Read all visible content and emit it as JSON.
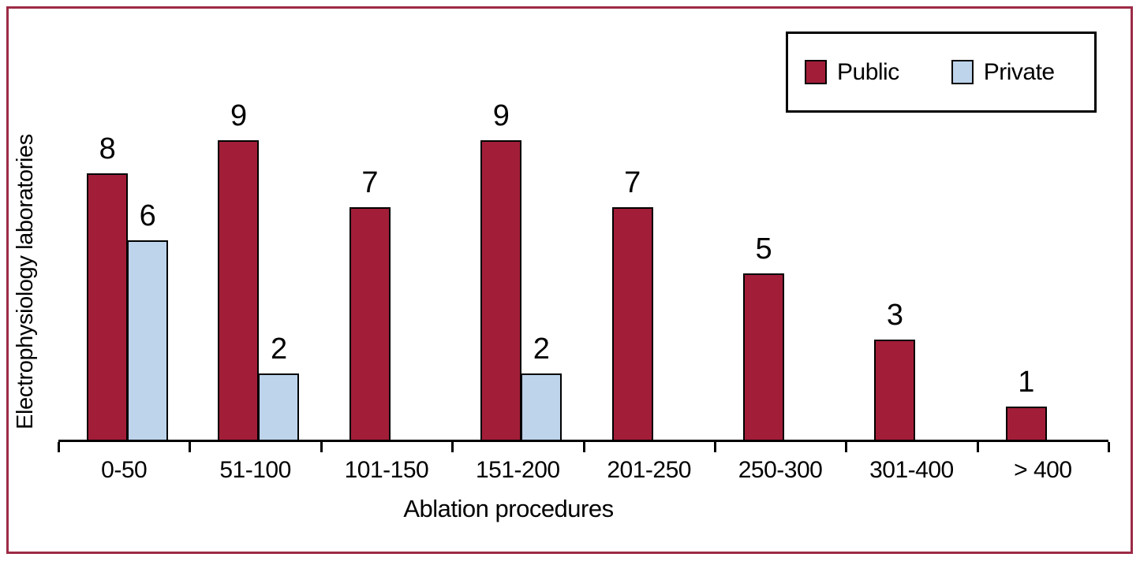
{
  "figure": {
    "border_color": "#9C2B45",
    "background": "#FFFFFF"
  },
  "chart_data": {
    "type": "bar",
    "categories": [
      "0-50",
      "51-100",
      "101-150",
      "151-200",
      "201-250",
      "250-300",
      "301-400",
      "> 400"
    ],
    "series": [
      {
        "name": "Public",
        "color": "#A21E38",
        "values": [
          8,
          9,
          7,
          9,
          7,
          5,
          3,
          1
        ]
      },
      {
        "name": "Private",
        "color": "#BDD4EB",
        "values": [
          6,
          2,
          null,
          2,
          null,
          null,
          null,
          null
        ]
      }
    ],
    "bar_value_labels": [
      {
        "category": "0-50",
        "Public": 8,
        "Private": 6
      },
      {
        "category": "51-100",
        "Public": 9,
        "Private": 2
      },
      {
        "category": "101-150",
        "Public": 7,
        "Private": null
      },
      {
        "category": "151-200",
        "Public": 9,
        "Private": 2
      },
      {
        "category": "201-250",
        "Public": 7,
        "Private": null
      },
      {
        "category": "250-300",
        "Public": 5,
        "Private": null
      },
      {
        "category": "301-400",
        "Public": 3,
        "Private": null
      },
      {
        "category": "> 400",
        "Public": 1,
        "Private": null
      }
    ],
    "title": "",
    "xlabel": "Ablation procedures",
    "ylabel": "Electrophysiology laboratories",
    "ylim": [
      0,
      10
    ],
    "y_axis_visible": false,
    "grid": false,
    "legend_position": "top-right",
    "bar_outline_color": "#000000"
  }
}
